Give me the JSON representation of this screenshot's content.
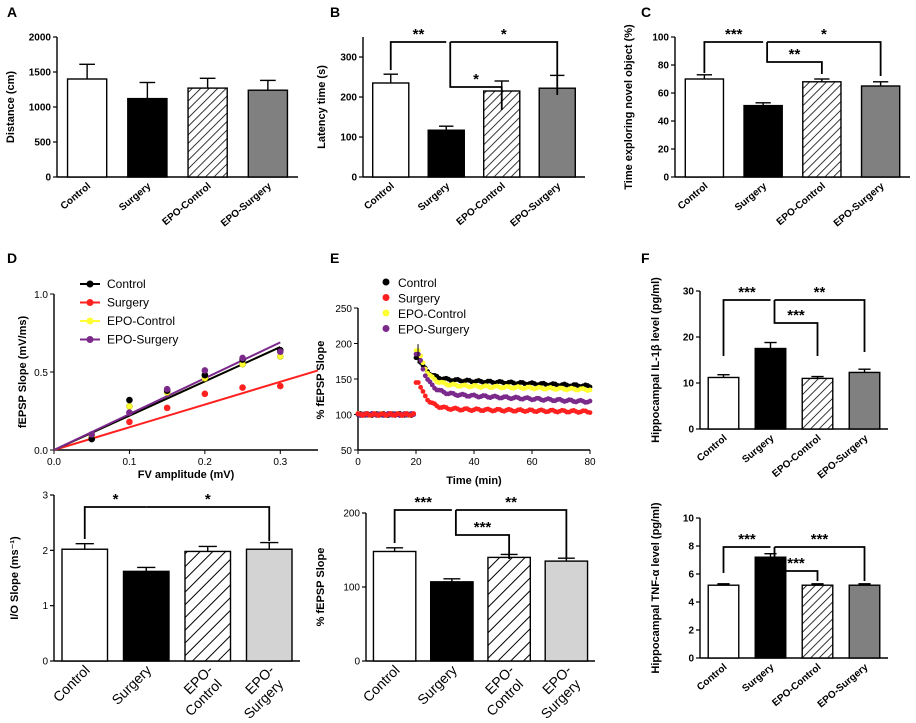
{
  "colors": {
    "control": "#ffffff",
    "surgery": "#000000",
    "epo_control_hatch": "#000000",
    "epo_surgery": "#808080",
    "epo_surgery_light": "#d3d3d3",
    "line_control": "#000000",
    "line_surgery": "#ff2020",
    "line_epo_control": "#ffff33",
    "line_epo_surgery": "#7b2a8c"
  },
  "chart_data": [
    {
      "id": "A",
      "panel_label": "A",
      "type": "bar",
      "categories": [
        "Control",
        "Surgery",
        "EPO-Control",
        "EPO-Surgery"
      ],
      "values": [
        1400,
        1120,
        1270,
        1240
      ],
      "errors": [
        210,
        230,
        140,
        140
      ],
      "ylabel": "Distance (cm)",
      "ylim": [
        0,
        2000
      ],
      "yticks": [
        "0",
        "500",
        "1000",
        "1500",
        "2000"
      ],
      "significance": []
    },
    {
      "id": "B",
      "panel_label": "B",
      "type": "bar",
      "categories": [
        "Control",
        "Surgery",
        "EPO-Control",
        "EPO-Surgery"
      ],
      "values": [
        235,
        117,
        215,
        222
      ],
      "errors": [
        22,
        10,
        25,
        32
      ],
      "ylabel": "Latency time (s)",
      "ylim": [
        0,
        350
      ],
      "yticks": [
        "0",
        "100",
        "200",
        "300"
      ],
      "significance": [
        {
          "from": 0,
          "to": 1,
          "label": "**"
        },
        {
          "from": 1,
          "to": 2,
          "label": "*"
        },
        {
          "from": 1,
          "to": 3,
          "label": "*"
        }
      ]
    },
    {
      "id": "C",
      "panel_label": "C",
      "type": "bar",
      "categories": [
        "Control",
        "Surgery",
        "EPO-Control",
        "EPO-Surgery"
      ],
      "values": [
        70,
        51,
        68,
        65
      ],
      "errors": [
        3,
        2,
        2,
        3
      ],
      "ylabel": "Time exploring novel object (%)",
      "ylim": [
        0,
        100
      ],
      "yticks": [
        "0",
        "20",
        "40",
        "60",
        "80",
        "100"
      ],
      "significance": [
        {
          "from": 0,
          "to": 1,
          "label": "***"
        },
        {
          "from": 1,
          "to": 2,
          "label": "**"
        },
        {
          "from": 1,
          "to": 3,
          "label": "*"
        }
      ]
    },
    {
      "id": "D_top",
      "panel_label": "D",
      "type": "scatter",
      "xlabel": "FV amplitude (mV)",
      "ylabel": "fEPSP Slope (mV/ms)",
      "xlim": [
        0,
        0.35
      ],
      "ylim": [
        0,
        1.0
      ],
      "xticks": [
        "0.0",
        "0.1",
        "0.2",
        "0.3"
      ],
      "yticks": [
        "0.0",
        "0.5",
        "1.0"
      ],
      "x": [
        0.05,
        0.1,
        0.15,
        0.2,
        0.25,
        0.3
      ],
      "series": [
        {
          "name": "Control",
          "values": [
            0.07,
            0.32,
            0.38,
            0.48,
            0.58,
            0.64
          ],
          "fit": [
            [
              0,
              0.0
            ],
            [
              0.3,
              0.66
            ]
          ]
        },
        {
          "name": "Surgery",
          "values": [
            0.08,
            0.18,
            0.27,
            0.36,
            0.4,
            0.41
          ],
          "fit": [
            [
              0,
              0.0
            ],
            [
              0.35,
              0.51
            ]
          ]
        },
        {
          "name": "EPO-Control",
          "values": [
            0.09,
            0.28,
            0.37,
            0.46,
            0.55,
            0.6
          ],
          "fit": [
            [
              0,
              0.0
            ],
            [
              0.3,
              0.66
            ]
          ]
        },
        {
          "name": "EPO-Surgery",
          "values": [
            0.1,
            0.24,
            0.39,
            0.51,
            0.59,
            0.63
          ],
          "fit": [
            [
              0,
              0.0
            ],
            [
              0.3,
              0.69
            ]
          ]
        }
      ]
    },
    {
      "id": "D_bottom",
      "panel_label": "",
      "type": "bar",
      "categories": [
        "Control",
        "Surgery",
        "EPO-Control",
        "EPO-Surgery"
      ],
      "values": [
        2.02,
        1.62,
        1.98,
        2.02
      ],
      "errors": [
        0.1,
        0.07,
        0.09,
        0.12
      ],
      "ylabel": "I/O Slope (ms⁻¹)",
      "ylim": [
        0,
        3
      ],
      "yticks": [
        "0",
        "1",
        "2",
        "3"
      ],
      "significance": [
        {
          "from": 0,
          "to": 1,
          "label": "*"
        },
        {
          "from": 1,
          "to": 3,
          "label": "*"
        }
      ]
    },
    {
      "id": "E_top",
      "panel_label": "E",
      "type": "line",
      "xlabel": "Time (min)",
      "ylabel": "% fEPSP Slope",
      "xlim": [
        0,
        80
      ],
      "ylim": [
        50,
        250
      ],
      "xticks": [
        "0",
        "20",
        "40",
        "60",
        "80"
      ],
      "yticks": [
        "50",
        "100",
        "150",
        "200",
        "250"
      ],
      "series": [
        {
          "name": "Control",
          "baseline": 100,
          "peak": 180,
          "plateau": 150,
          "end": 140
        },
        {
          "name": "Surgery",
          "baseline": 100,
          "peak": 145,
          "plateau": 108,
          "end": 104
        },
        {
          "name": "EPO-Control",
          "baseline": 100,
          "peak": 190,
          "plateau": 142,
          "end": 135
        },
        {
          "name": "EPO-Surgery",
          "baseline": 100,
          "peak": 185,
          "plateau": 130,
          "end": 118
        }
      ]
    },
    {
      "id": "E_bottom",
      "panel_label": "",
      "type": "bar",
      "categories": [
        "Control",
        "Surgery",
        "EPO-Control",
        "EPO-Surgery"
      ],
      "values": [
        148,
        107,
        140,
        135
      ],
      "errors": [
        5,
        4,
        4,
        4
      ],
      "ylabel": "% fEPSP Slope",
      "ylim": [
        0,
        200
      ],
      "yticks": [
        "0",
        "100",
        "200"
      ],
      "significance": [
        {
          "from": 0,
          "to": 1,
          "label": "***"
        },
        {
          "from": 1,
          "to": 2,
          "label": "***"
        },
        {
          "from": 1,
          "to": 3,
          "label": "**"
        }
      ]
    },
    {
      "id": "F_top",
      "panel_label": "F",
      "type": "bar",
      "categories": [
        "Control",
        "Surgery",
        "EPO-Control",
        "EPO-Surgery"
      ],
      "values": [
        11.2,
        17.5,
        11.0,
        12.3
      ],
      "errors": [
        0.6,
        1.3,
        0.4,
        0.7
      ],
      "ylabel": "Hippocampal IL-1β level (pg/ml)",
      "ylim": [
        0,
        30
      ],
      "yticks": [
        "0",
        "10",
        "20",
        "30"
      ],
      "significance": [
        {
          "from": 0,
          "to": 1,
          "label": "***"
        },
        {
          "from": 1,
          "to": 2,
          "label": "***"
        },
        {
          "from": 1,
          "to": 3,
          "label": "**"
        }
      ]
    },
    {
      "id": "F_bottom",
      "panel_label": "",
      "type": "bar",
      "categories": [
        "Control",
        "Surgery",
        "EPO-Control",
        "EPO-Surgery"
      ],
      "values": [
        5.2,
        7.2,
        5.2,
        5.2
      ],
      "errors": [
        0.1,
        0.25,
        0.1,
        0.1
      ],
      "ylabel": "Hippocampal TNF-α level (pg/ml)",
      "ylim": [
        0,
        10
      ],
      "yticks": [
        "0",
        "2",
        "4",
        "6",
        "8",
        "10"
      ],
      "significance": [
        {
          "from": 0,
          "to": 1,
          "label": "***"
        },
        {
          "from": 1,
          "to": 2,
          "label": "***"
        },
        {
          "from": 1,
          "to": 3,
          "label": "***"
        }
      ]
    }
  ],
  "legend_d": [
    "Control",
    "Surgery",
    "EPO-Control",
    "EPO-Surgery"
  ],
  "legend_e": [
    "Control",
    "Surgery",
    "EPO-Control",
    "EPO-Surgery"
  ]
}
